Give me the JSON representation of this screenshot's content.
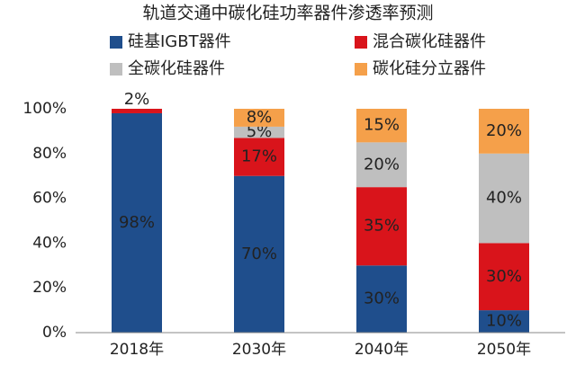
{
  "chart_data": {
    "type": "stacked_bar",
    "title": "轨道交通中碳化硅功率器件渗透率预测",
    "categories": [
      "2018年",
      "2030年",
      "2040年",
      "2050年"
    ],
    "series": [
      {
        "name": "硅基IGBT器件",
        "color": "#1f4e8c",
        "values": [
          98,
          70,
          30,
          10
        ],
        "value_labels": [
          "98%",
          "70%",
          "30%",
          "10%"
        ]
      },
      {
        "name": "混合碳化硅器件",
        "color": "#d9141b",
        "values": [
          2,
          17,
          35,
          30
        ],
        "value_labels": [
          "2%",
          "17%",
          "35%",
          "30%"
        ]
      },
      {
        "name": "全碳化硅器件",
        "color": "#bfbfbf",
        "values": [
          0,
          5,
          20,
          40
        ],
        "value_labels": [
          null,
          "5%",
          "20%",
          "40%"
        ]
      },
      {
        "name": "碳化硅分立器件",
        "color": "#f5a04a",
        "values": [
          0,
          8,
          15,
          20
        ],
        "value_labels": [
          null,
          "8%",
          "15%",
          "20%"
        ]
      }
    ],
    "ylim": [
      0,
      100
    ],
    "yticks": [
      {
        "value": 0,
        "label": "0%"
      },
      {
        "value": 20,
        "label": "20%"
      },
      {
        "value": 40,
        "label": "40%"
      },
      {
        "value": 60,
        "label": "60%"
      },
      {
        "value": 80,
        "label": "80%"
      },
      {
        "value": 100,
        "label": "100%"
      }
    ],
    "grid": false
  }
}
